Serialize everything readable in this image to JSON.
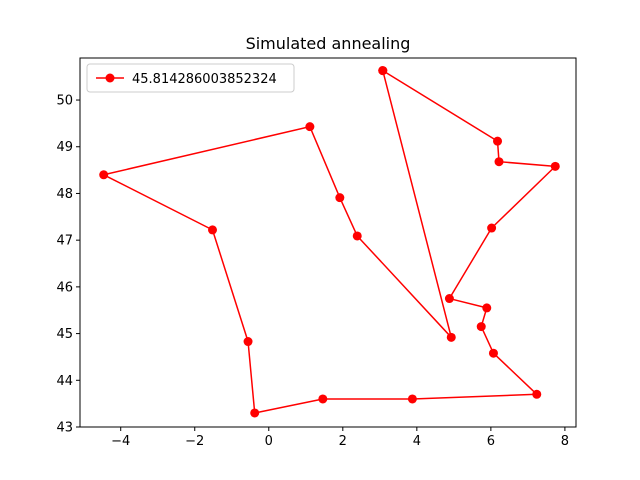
{
  "chart_data": {
    "type": "line",
    "title": "Simulated annealing",
    "xlabel": "",
    "ylabel": "",
    "xlim": [
      -5.1,
      8.3
    ],
    "ylim": [
      43.0,
      50.9
    ],
    "xticks": [
      -4,
      -2,
      0,
      2,
      4,
      6,
      8
    ],
    "yticks": [
      43,
      44,
      45,
      46,
      47,
      48,
      49,
      50
    ],
    "xtick_labels": [
      "−4",
      "−2",
      "0",
      "2",
      "4",
      "6",
      "8"
    ],
    "ytick_labels": [
      "43",
      "44",
      "45",
      "46",
      "47",
      "48",
      "49",
      "50"
    ],
    "grid": false,
    "legend_position": "top-left",
    "series": [
      {
        "name": "45.814286003852324",
        "color": "#ff0000",
        "marker": "circle",
        "x": [
          3.08,
          6.18,
          6.22,
          7.74,
          6.02,
          4.88,
          5.89,
          5.74,
          6.07,
          7.24,
          3.88,
          1.46,
          -0.38,
          -0.56,
          -1.52,
          -4.46,
          1.11,
          1.92,
          2.39,
          4.93,
          3.08
        ],
        "y": [
          50.63,
          49.12,
          48.68,
          48.58,
          47.26,
          45.75,
          45.55,
          45.15,
          44.58,
          43.7,
          43.6,
          43.6,
          43.3,
          44.83,
          47.22,
          48.4,
          49.43,
          47.91,
          47.09,
          44.92,
          50.63
        ]
      }
    ]
  }
}
